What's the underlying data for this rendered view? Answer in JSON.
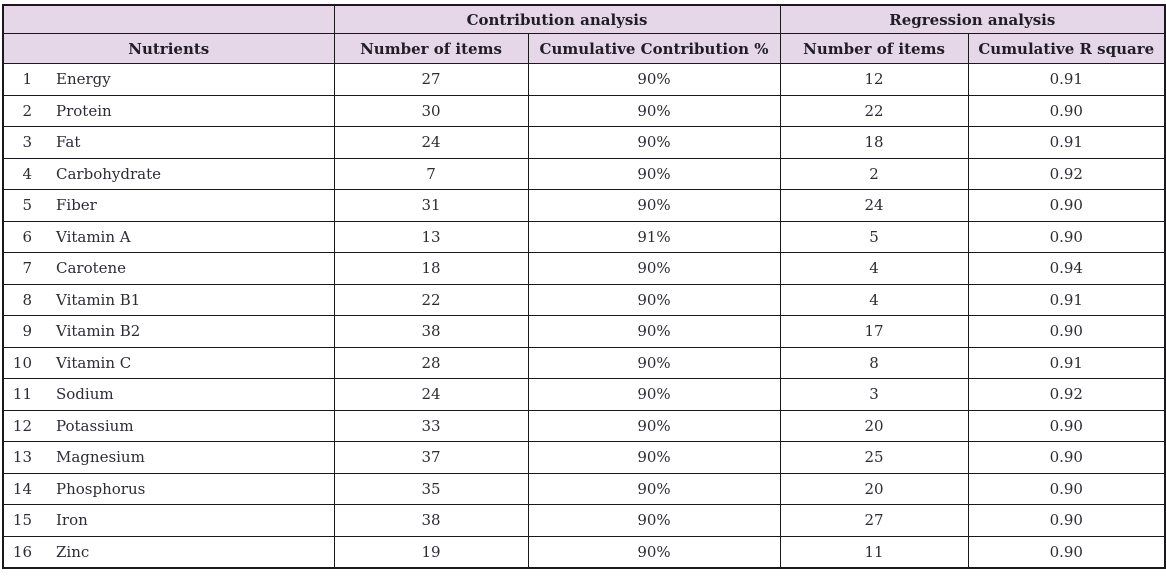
{
  "table": {
    "group_headers": {
      "blank": "",
      "contribution": "Contribution analysis",
      "regression": "Regression analysis"
    },
    "column_headers": {
      "nutrients": "Nutrients",
      "contribution_items": "Number of items",
      "cumulative_contribution": "Cumulative Contribution %",
      "regression_items": "Number of items",
      "cumulative_r_square": "Cumulative R square"
    },
    "rows": [
      {
        "index": "1",
        "nutrient": "Energy",
        "contribution_items": "27",
        "cumulative_contribution": "90%",
        "regression_items": "12",
        "cumulative_r_square": "0.91"
      },
      {
        "index": "2",
        "nutrient": "Protein",
        "contribution_items": "30",
        "cumulative_contribution": "90%",
        "regression_items": "22",
        "cumulative_r_square": "0.90"
      },
      {
        "index": "3",
        "nutrient": "Fat",
        "contribution_items": "24",
        "cumulative_contribution": "90%",
        "regression_items": "18",
        "cumulative_r_square": "0.91"
      },
      {
        "index": "4",
        "nutrient": "Carbohydrate",
        "contribution_items": "7",
        "cumulative_contribution": "90%",
        "regression_items": "2",
        "cumulative_r_square": "0.92"
      },
      {
        "index": "5",
        "nutrient": "Fiber",
        "contribution_items": "31",
        "cumulative_contribution": "90%",
        "regression_items": "24",
        "cumulative_r_square": "0.90"
      },
      {
        "index": "6",
        "nutrient": "Vitamin A",
        "contribution_items": "13",
        "cumulative_contribution": "91%",
        "regression_items": "5",
        "cumulative_r_square": "0.90"
      },
      {
        "index": "7",
        "nutrient": "Carotene",
        "contribution_items": "18",
        "cumulative_contribution": "90%",
        "regression_items": "4",
        "cumulative_r_square": "0.94"
      },
      {
        "index": "8",
        "nutrient": "Vitamin B1",
        "contribution_items": "22",
        "cumulative_contribution": "90%",
        "regression_items": "4",
        "cumulative_r_square": "0.91"
      },
      {
        "index": "9",
        "nutrient": "Vitamin B2",
        "contribution_items": "38",
        "cumulative_contribution": "90%",
        "regression_items": "17",
        "cumulative_r_square": "0.90"
      },
      {
        "index": "10",
        "nutrient": "Vitamin C",
        "contribution_items": "28",
        "cumulative_contribution": "90%",
        "regression_items": "8",
        "cumulative_r_square": "0.91"
      },
      {
        "index": "11",
        "nutrient": "Sodium",
        "contribution_items": "24",
        "cumulative_contribution": "90%",
        "regression_items": "3",
        "cumulative_r_square": "0.92"
      },
      {
        "index": "12",
        "nutrient": "Potassium",
        "contribution_items": "33",
        "cumulative_contribution": "90%",
        "regression_items": "20",
        "cumulative_r_square": "0.90"
      },
      {
        "index": "13",
        "nutrient": "Magnesium",
        "contribution_items": "37",
        "cumulative_contribution": "90%",
        "regression_items": "25",
        "cumulative_r_square": "0.90"
      },
      {
        "index": "14",
        "nutrient": "Phosphorus",
        "contribution_items": "35",
        "cumulative_contribution": "90%",
        "regression_items": "20",
        "cumulative_r_square": "0.90"
      },
      {
        "index": "15",
        "nutrient": "Iron",
        "contribution_items": "38",
        "cumulative_contribution": "90%",
        "regression_items": "27",
        "cumulative_r_square": "0.90"
      },
      {
        "index": "16",
        "nutrient": "Zinc",
        "contribution_items": "19",
        "cumulative_contribution": "90%",
        "regression_items": "11",
        "cumulative_r_square": "0.90"
      }
    ]
  },
  "colors": {
    "header_bg": "#e6d7e8",
    "border": "#1b181d",
    "header_text": "#211d26",
    "body_text": "#2e2b33"
  }
}
